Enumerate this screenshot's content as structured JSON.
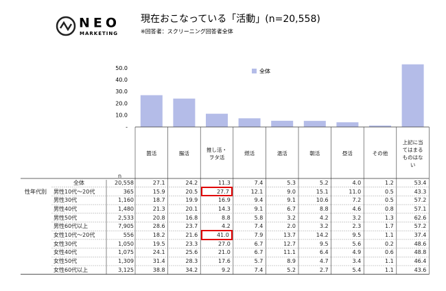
{
  "header": {
    "logo": "NEO",
    "logo_sub": "MARKETING",
    "title": "現在おこなっている「活動」(n=20,558)",
    "subtitle": "※回答者：スクリーニング回答者全体"
  },
  "chart_data": {
    "type": "bar",
    "series_name": "全体",
    "color": "#b4bce8",
    "categories": [
      "菌活",
      "腸活",
      "推し活・ヲタ活",
      "燃活",
      "温活",
      "朝活",
      "昼活",
      "その他",
      "上記に当てはまるものはない"
    ],
    "values": [
      27.1,
      24.2,
      11.3,
      7.4,
      5.3,
      5.2,
      4.0,
      1.2,
      53.4
    ],
    "ylim": [
      0,
      55
    ],
    "yticks": [
      {
        "value": 0,
        "label": "-"
      },
      {
        "value": 10,
        "label": "10.0"
      },
      {
        "value": 20,
        "label": "20.0"
      },
      {
        "value": 30,
        "label": "30.0"
      },
      {
        "value": 40,
        "label": "40.0"
      },
      {
        "value": 50,
        "label": "50.0"
      }
    ]
  },
  "table": {
    "n_header": "n",
    "group_label": "性年代別",
    "rows": [
      [
        "全体",
        "20,558",
        "27.1",
        "24.2",
        "11.3",
        "7.4",
        "5.3",
        "5.2",
        "4.0",
        "1.2",
        "53.4"
      ],
      [
        "男性10代～20代",
        "365",
        "15.9",
        "20.5",
        "27.7",
        "12.1",
        "9.0",
        "15.1",
        "11.0",
        "0.5",
        "43.3"
      ],
      [
        "男性30代",
        "1,160",
        "18.7",
        "19.9",
        "16.9",
        "9.4",
        "9.1",
        "10.6",
        "7.2",
        "0.5",
        "57.2"
      ],
      [
        "男性40代",
        "1,480",
        "21.3",
        "20.1",
        "14.3",
        "9.1",
        "6.7",
        "8.8",
        "4.6",
        "0.8",
        "57.1"
      ],
      [
        "男性50代",
        "2,533",
        "20.8",
        "16.8",
        "8.8",
        "5.8",
        "3.2",
        "4.2",
        "3.2",
        "1.3",
        "62.6"
      ],
      [
        "男性60代以上",
        "7,905",
        "28.6",
        "23.7",
        "4.2",
        "7.4",
        "2.0",
        "3.2",
        "2.3",
        "1.7",
        "57.2"
      ],
      [
        "女性10代～20代",
        "556",
        "18.2",
        "21.6",
        "41.0",
        "7.9",
        "13.7",
        "14.2",
        "9.5",
        "1.1",
        "37.4"
      ],
      [
        "女性30代",
        "1,050",
        "19.5",
        "23.3",
        "27.0",
        "6.7",
        "12.7",
        "9.5",
        "5.6",
        "0.2",
        "48.6"
      ],
      [
        "女性40代",
        "1,075",
        "24.1",
        "25.6",
        "21.0",
        "6.7",
        "11.1",
        "6.4",
        "4.9",
        "0.6",
        "48.8"
      ],
      [
        "女性50代",
        "1,309",
        "31.4",
        "28.3",
        "17.6",
        "5.7",
        "8.9",
        "4.7",
        "3.4",
        "1.1",
        "46.4"
      ],
      [
        "女性60代以上",
        "3,125",
        "38.8",
        "34.2",
        "9.2",
        "7.4",
        "5.2",
        "2.7",
        "5.4",
        "1.1",
        "43.6"
      ]
    ]
  }
}
